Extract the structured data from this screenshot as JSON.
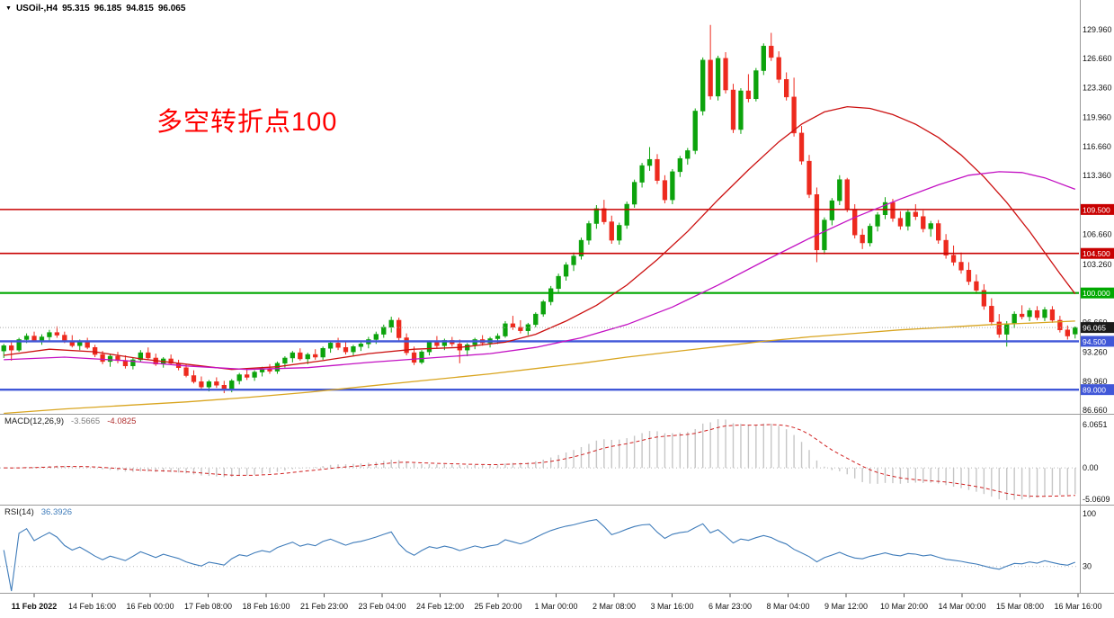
{
  "header": {
    "dropdown_icon": "▼",
    "symbol": "USOil-,H4",
    "open": "95.315",
    "high": "96.185",
    "low": "94.815",
    "close": "96.065"
  },
  "annotation": {
    "text": "多空转折点100",
    "color": "#FF0000"
  },
  "chart_data": {
    "type": "candlestick",
    "symbol": "USOil-",
    "timeframe": "H4",
    "bull_color": "#0CA30C",
    "bear_color": "#ED2A1E",
    "y_axis": {
      "range": [
        86.35,
        131.09
      ],
      "ticks": [
        "129.960",
        "126.660",
        "123.360",
        "119.960",
        "116.660",
        "113.360",
        "106.660",
        "103.260",
        "96.660",
        "93.260",
        "89.960",
        "86.660"
      ]
    },
    "x_axis": {
      "labels": [
        "11 Feb 2022",
        "14 Feb 16:00",
        "16 Feb 00:00",
        "17 Feb 08:00",
        "18 Feb 16:00",
        "21 Feb 23:00",
        "23 Feb 04:00",
        "24 Feb 12:00",
        "25 Feb 20:00",
        "1 Mar 00:00",
        "2 Mar 08:00",
        "3 Mar 16:00",
        "6 Mar 23:00",
        "8 Mar 04:00",
        "9 Mar 12:00",
        "10 Mar 20:00",
        "14 Mar 00:00",
        "15 Mar 08:00",
        "16 Mar 16:00"
      ]
    },
    "hlines": [
      {
        "value": 109.5,
        "label": "109.500",
        "color": "#C80000",
        "width": 1.6
      },
      {
        "value": 104.5,
        "label": "104.500",
        "color": "#C80000",
        "width": 1.6
      },
      {
        "value": 100.0,
        "label": "100.000",
        "color": "#00A800",
        "width": 2.2
      },
      {
        "value": 94.5,
        "label": "94.500",
        "color": "#4057D8",
        "width": 2.4
      },
      {
        "value": 89.0,
        "label": "89.000",
        "color": "#4057D8",
        "width": 2.4
      }
    ],
    "current_price": {
      "value": 96.065,
      "label": "96.065",
      "line_color": "#ababab",
      "badge_color": "#1a1a1a"
    },
    "ma_overlays": [
      {
        "name": "ma-fast-red",
        "color": "#CC1111",
        "points": [
          [
            0,
            92.9
          ],
          [
            6,
            93.6
          ],
          [
            12,
            93.3
          ],
          [
            18,
            92.5
          ],
          [
            24,
            91.9
          ],
          [
            30,
            91.3
          ],
          [
            36,
            91.6
          ],
          [
            42,
            92.3
          ],
          [
            48,
            93.1
          ],
          [
            54,
            93.6
          ],
          [
            60,
            93.8
          ],
          [
            66,
            94.4
          ],
          [
            70,
            95.3
          ],
          [
            74,
            96.8
          ],
          [
            78,
            98.6
          ],
          [
            82,
            100.9
          ],
          [
            86,
            103.8
          ],
          [
            90,
            107.0
          ],
          [
            94,
            110.6
          ],
          [
            98,
            114.0
          ],
          [
            102,
            117.2
          ],
          [
            105,
            119.2
          ],
          [
            108,
            120.6
          ],
          [
            111,
            121.2
          ],
          [
            114,
            121.0
          ],
          [
            117,
            120.3
          ],
          [
            120,
            119.2
          ],
          [
            123,
            117.7
          ],
          [
            126,
            115.7
          ],
          [
            129,
            113.2
          ],
          [
            132,
            110.3
          ],
          [
            135,
            107.0
          ],
          [
            138,
            103.4
          ],
          [
            139,
            102.2
          ],
          [
            141,
            99.9
          ]
        ]
      },
      {
        "name": "ma-mid-magenta",
        "color": "#C311C3",
        "points": [
          [
            0,
            92.4
          ],
          [
            8,
            92.7
          ],
          [
            16,
            92.3
          ],
          [
            24,
            91.7
          ],
          [
            32,
            91.3
          ],
          [
            40,
            91.5
          ],
          [
            48,
            92.1
          ],
          [
            56,
            92.6
          ],
          [
            64,
            93.1
          ],
          [
            70,
            93.8
          ],
          [
            76,
            94.9
          ],
          [
            82,
            96.4
          ],
          [
            88,
            98.4
          ],
          [
            94,
            100.9
          ],
          [
            100,
            103.6
          ],
          [
            106,
            106.2
          ],
          [
            112,
            108.6
          ],
          [
            118,
            110.7
          ],
          [
            123,
            112.3
          ],
          [
            127,
            113.4
          ],
          [
            131,
            113.8
          ],
          [
            134,
            113.7
          ],
          [
            137,
            113.1
          ],
          [
            141,
            111.8
          ]
        ]
      },
      {
        "name": "ma-slow-orange",
        "color": "#D9A520",
        "points": [
          [
            0,
            86.3
          ],
          [
            8,
            86.8
          ],
          [
            16,
            87.2
          ],
          [
            24,
            87.6
          ],
          [
            32,
            88.1
          ],
          [
            40,
            88.7
          ],
          [
            48,
            89.4
          ],
          [
            56,
            90.1
          ],
          [
            64,
            90.8
          ],
          [
            70,
            91.4
          ],
          [
            76,
            92.0
          ],
          [
            82,
            92.7
          ],
          [
            88,
            93.3
          ],
          [
            94,
            93.9
          ],
          [
            100,
            94.5
          ],
          [
            106,
            95.0
          ],
          [
            112,
            95.4
          ],
          [
            118,
            95.8
          ],
          [
            124,
            96.1
          ],
          [
            130,
            96.4
          ],
          [
            136,
            96.6
          ],
          [
            141,
            96.8
          ]
        ]
      }
    ],
    "candles": [
      [
        93.4,
        94.2,
        92.6,
        94.0
      ],
      [
        94.0,
        94.6,
        92.3,
        93.5
      ],
      [
        93.5,
        94.9,
        93.3,
        94.7
      ],
      [
        94.7,
        95.4,
        94.3,
        95.1
      ],
      [
        95.1,
        95.6,
        94.4,
        94.6
      ],
      [
        94.6,
        95.3,
        94.1,
        95.0
      ],
      [
        95.0,
        95.8,
        94.6,
        95.5
      ],
      [
        95.5,
        96.2,
        94.9,
        95.2
      ],
      [
        95.2,
        95.6,
        94.3,
        94.5
      ],
      [
        94.5,
        95.2,
        93.8,
        94.0
      ],
      [
        94.0,
        94.7,
        93.5,
        94.4
      ],
      [
        94.4,
        94.9,
        93.6,
        93.8
      ],
      [
        93.8,
        94.1,
        92.7,
        93.0
      ],
      [
        93.0,
        93.4,
        91.9,
        92.2
      ],
      [
        92.2,
        93.1,
        91.6,
        92.8
      ],
      [
        92.8,
        93.3,
        92.0,
        92.3
      ],
      [
        92.3,
        92.9,
        91.4,
        91.7
      ],
      [
        91.7,
        92.6,
        91.3,
        92.4
      ],
      [
        92.4,
        93.5,
        92.1,
        93.2
      ],
      [
        93.2,
        93.8,
        92.4,
        92.6
      ],
      [
        92.6,
        93.1,
        91.7,
        91.9
      ],
      [
        91.9,
        92.7,
        91.5,
        92.5
      ],
      [
        92.5,
        93.0,
        91.8,
        92.0
      ],
      [
        92.0,
        92.4,
        91.2,
        91.5
      ],
      [
        91.5,
        91.9,
        90.4,
        90.6
      ],
      [
        90.6,
        91.2,
        89.7,
        89.9
      ],
      [
        89.9,
        90.5,
        89.0,
        89.3
      ],
      [
        89.3,
        90.1,
        88.8,
        89.9
      ],
      [
        89.9,
        90.4,
        89.2,
        89.5
      ],
      [
        89.5,
        90.0,
        88.6,
        89.0
      ],
      [
        89.0,
        90.2,
        88.7,
        90.0
      ],
      [
        90.0,
        90.9,
        89.6,
        90.7
      ],
      [
        90.7,
        91.3,
        90.1,
        90.4
      ],
      [
        90.4,
        91.2,
        90.0,
        91.0
      ],
      [
        91.0,
        91.6,
        90.5,
        91.4
      ],
      [
        91.4,
        91.9,
        90.8,
        91.1
      ],
      [
        91.1,
        92.2,
        90.8,
        92.0
      ],
      [
        92.0,
        92.8,
        91.5,
        92.6
      ],
      [
        92.6,
        93.4,
        92.1,
        93.2
      ],
      [
        93.2,
        93.7,
        92.3,
        92.5
      ],
      [
        92.5,
        93.2,
        91.9,
        93.0
      ],
      [
        93.0,
        93.6,
        92.4,
        92.7
      ],
      [
        92.7,
        93.9,
        92.4,
        93.7
      ],
      [
        93.7,
        94.5,
        93.2,
        94.3
      ],
      [
        94.3,
        94.9,
        93.5,
        93.8
      ],
      [
        93.8,
        94.4,
        93.0,
        93.3
      ],
      [
        93.3,
        94.1,
        92.9,
        93.9
      ],
      [
        93.9,
        94.6,
        93.4,
        94.2
      ],
      [
        94.2,
        95.0,
        93.7,
        94.7
      ],
      [
        94.7,
        95.6,
        94.2,
        95.3
      ],
      [
        95.3,
        96.4,
        94.9,
        96.1
      ],
      [
        96.1,
        97.3,
        95.5,
        96.9
      ],
      [
        96.9,
        97.2,
        94.6,
        94.9
      ],
      [
        94.9,
        95.4,
        92.9,
        93.2
      ],
      [
        93.2,
        93.9,
        91.8,
        92.1
      ],
      [
        92.1,
        93.5,
        91.9,
        93.3
      ],
      [
        93.3,
        94.6,
        92.9,
        94.4
      ],
      [
        94.4,
        95.1,
        93.7,
        94.0
      ],
      [
        94.0,
        94.8,
        93.5,
        94.6
      ],
      [
        94.6,
        95.0,
        93.9,
        94.2
      ],
      [
        94.2,
        94.7,
        92.0,
        93.5
      ],
      [
        93.5,
        94.3,
        92.8,
        94.1
      ],
      [
        94.1,
        94.9,
        93.6,
        94.7
      ],
      [
        94.7,
        95.2,
        94.0,
        94.3
      ],
      [
        94.3,
        95.0,
        93.8,
        94.8
      ],
      [
        94.8,
        95.4,
        94.2,
        95.1
      ],
      [
        95.1,
        96.8,
        94.9,
        96.5
      ],
      [
        96.5,
        97.4,
        95.8,
        96.1
      ],
      [
        96.1,
        96.9,
        95.4,
        95.7
      ],
      [
        95.7,
        96.6,
        95.2,
        96.4
      ],
      [
        96.4,
        97.8,
        96.1,
        97.6
      ],
      [
        97.6,
        99.2,
        97.3,
        99.0
      ],
      [
        99.0,
        100.8,
        98.6,
        100.5
      ],
      [
        100.5,
        102.2,
        100.0,
        101.9
      ],
      [
        101.9,
        103.5,
        101.4,
        103.2
      ],
      [
        103.2,
        104.6,
        102.5,
        104.2
      ],
      [
        104.2,
        106.3,
        103.8,
        106.0
      ],
      [
        106.0,
        108.2,
        105.5,
        107.9
      ],
      [
        107.9,
        110.0,
        107.3,
        109.6
      ],
      [
        109.6,
        110.6,
        107.8,
        108.1
      ],
      [
        108.1,
        108.8,
        105.6,
        106.0
      ],
      [
        106.0,
        108.0,
        105.5,
        107.7
      ],
      [
        107.7,
        110.4,
        107.3,
        110.1
      ],
      [
        110.1,
        112.9,
        109.7,
        112.6
      ],
      [
        112.6,
        114.8,
        112.0,
        114.5
      ],
      [
        114.5,
        116.6,
        113.9,
        115.2
      ],
      [
        115.2,
        115.8,
        112.4,
        112.8
      ],
      [
        112.8,
        113.4,
        110.2,
        110.6
      ],
      [
        110.6,
        114.1,
        110.1,
        113.8
      ],
      [
        113.8,
        115.6,
        113.2,
        115.3
      ],
      [
        115.3,
        116.5,
        114.6,
        116.2
      ],
      [
        116.2,
        121.0,
        115.8,
        120.7
      ],
      [
        120.7,
        126.8,
        120.2,
        126.5
      ],
      [
        126.5,
        130.5,
        122.0,
        122.4
      ],
      [
        122.4,
        127.0,
        121.9,
        126.7
      ],
      [
        126.7,
        127.4,
        122.7,
        123.1
      ],
      [
        123.1,
        123.8,
        118.2,
        118.6
      ],
      [
        118.6,
        123.3,
        118.1,
        123.0
      ],
      [
        123.0,
        124.9,
        121.7,
        122.1
      ],
      [
        122.1,
        125.6,
        121.8,
        125.3
      ],
      [
        125.3,
        128.4,
        124.8,
        128.1
      ],
      [
        128.1,
        129.6,
        126.4,
        126.8
      ],
      [
        126.8,
        127.5,
        123.9,
        124.3
      ],
      [
        124.3,
        125.1,
        121.9,
        122.3
      ],
      [
        122.3,
        124.5,
        117.8,
        118.2
      ],
      [
        118.2,
        119.0,
        114.6,
        115.0
      ],
      [
        115.0,
        115.7,
        110.8,
        111.2
      ],
      [
        111.2,
        112.0,
        103.5,
        104.9
      ],
      [
        104.9,
        108.6,
        104.4,
        108.3
      ],
      [
        108.3,
        110.8,
        107.7,
        110.5
      ],
      [
        110.5,
        113.4,
        110.0,
        112.9
      ],
      [
        112.9,
        113.1,
        109.2,
        109.5
      ],
      [
        109.5,
        110.1,
        106.2,
        106.6
      ],
      [
        106.6,
        107.3,
        105.0,
        105.7
      ],
      [
        105.7,
        107.9,
        105.3,
        107.6
      ],
      [
        107.6,
        109.2,
        107.0,
        108.9
      ],
      [
        108.9,
        110.9,
        108.4,
        110.3
      ],
      [
        110.3,
        110.7,
        108.1,
        108.5
      ],
      [
        108.5,
        109.3,
        107.2,
        107.6
      ],
      [
        107.6,
        109.5,
        107.1,
        109.2
      ],
      [
        109.2,
        110.1,
        108.3,
        108.7
      ],
      [
        108.7,
        109.4,
        106.9,
        107.3
      ],
      [
        107.3,
        108.2,
        106.4,
        107.9
      ],
      [
        107.9,
        108.3,
        105.6,
        106.0
      ],
      [
        106.0,
        106.7,
        103.9,
        104.3
      ],
      [
        104.3,
        105.4,
        103.1,
        103.5
      ],
      [
        103.5,
        104.6,
        102.2,
        102.6
      ],
      [
        102.6,
        103.5,
        100.9,
        101.3
      ],
      [
        101.3,
        102.1,
        99.9,
        100.3
      ],
      [
        100.3,
        101.0,
        98.1,
        98.5
      ],
      [
        98.5,
        99.4,
        96.3,
        96.7
      ],
      [
        96.7,
        97.6,
        94.9,
        95.3
      ],
      [
        95.3,
        96.8,
        93.9,
        96.5
      ],
      [
        96.5,
        97.9,
        96.0,
        97.6
      ],
      [
        97.6,
        98.6,
        97.0,
        97.3
      ],
      [
        97.3,
        98.3,
        96.8,
        98.0
      ],
      [
        98.0,
        98.5,
        96.9,
        97.2
      ],
      [
        97.2,
        98.4,
        96.8,
        98.1
      ],
      [
        98.1,
        98.5,
        96.6,
        96.9
      ],
      [
        96.9,
        97.4,
        95.5,
        95.8
      ],
      [
        95.8,
        96.3,
        94.7,
        95.1
      ],
      [
        95.32,
        96.19,
        94.82,
        96.07
      ]
    ],
    "indicators": [
      {
        "name": "MACD",
        "label": "MACD(12,26,9)",
        "values": [
          "-3.5665",
          "-4.0825"
        ],
        "params": [
          12,
          26,
          9
        ],
        "axis_labels": [
          "6.0651",
          "0.00",
          "-5.0609"
        ],
        "histogram_color": "#c6c6c6",
        "signal_color": "#d02020"
      },
      {
        "name": "RSI",
        "label": "RSI(14)",
        "value": "36.3926",
        "period": 14,
        "axis_labels": [
          "100",
          "30"
        ],
        "levels": [
          30
        ],
        "line_color": "#3f7cba"
      }
    ]
  }
}
